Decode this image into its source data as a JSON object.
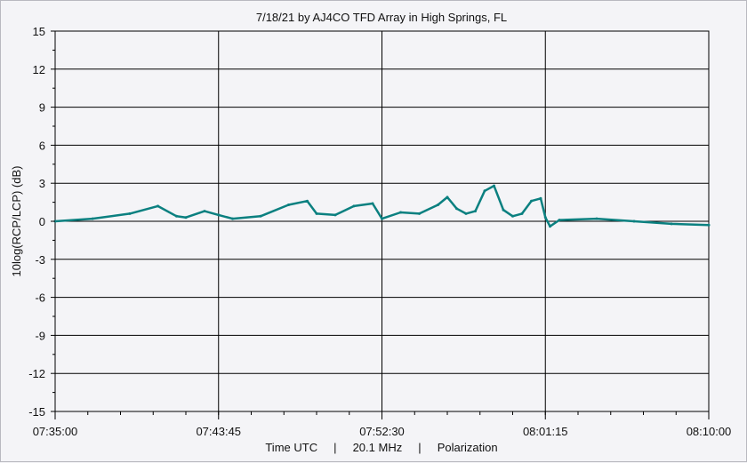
{
  "chart_data": {
    "type": "line",
    "title": "7/18/21  by  AJ4CO TFD Array  in  High Springs, FL",
    "xlabel": "Time UTC     |     20.1 MHz     |     Polarization",
    "ylabel": "10log(RCP/LCP)  (dB)",
    "ylim": [
      -15,
      15
    ],
    "yticks": [
      15,
      12,
      9,
      6,
      3,
      0,
      -3,
      -6,
      -9,
      -12,
      -15
    ],
    "ytick_labels": [
      "15",
      "12",
      "9",
      "6",
      "3",
      "0",
      "-3",
      "-6",
      "-9",
      "-12",
      "-15"
    ],
    "xlim": [
      "07:35:00",
      "08:10:00"
    ],
    "xticks": [
      "07:35:00",
      "07:43:45",
      "07:52:30",
      "08:01:15",
      "08:10:00"
    ],
    "grid": true,
    "series_color": "#0b8080",
    "series": [
      {
        "x": [
          "07:35:00",
          "07:37:00",
          "07:39:00",
          "07:40:30",
          "07:41:30",
          "07:42:00",
          "07:43:00",
          "07:43:45",
          "07:44:30",
          "07:46:00",
          "07:47:30",
          "07:48:30",
          "07:49:00",
          "07:50:00",
          "07:51:00",
          "07:52:00",
          "07:52:30",
          "07:53:30",
          "07:54:30",
          "07:55:30",
          "07:56:00",
          "07:56:30",
          "07:57:00",
          "07:57:30",
          "07:58:00",
          "07:58:30",
          "07:59:00",
          "07:59:30",
          "08:00:00",
          "08:00:30",
          "08:01:00",
          "08:01:15",
          "08:01:30",
          "08:02:00",
          "08:04:00",
          "08:06:00",
          "08:08:00",
          "08:10:00"
        ],
        "values": [
          0,
          0.2,
          0.6,
          1.2,
          0.4,
          0.3,
          0.8,
          0.5,
          0.2,
          0.4,
          1.3,
          1.6,
          0.6,
          0.5,
          1.2,
          1.4,
          0.2,
          0.7,
          0.6,
          1.3,
          1.9,
          1.0,
          0.6,
          0.8,
          2.4,
          2.8,
          0.9,
          0.4,
          0.6,
          1.6,
          1.8,
          0.3,
          -0.4,
          0.1,
          0.2,
          0.0,
          -0.2,
          -0.3
        ]
      }
    ]
  }
}
